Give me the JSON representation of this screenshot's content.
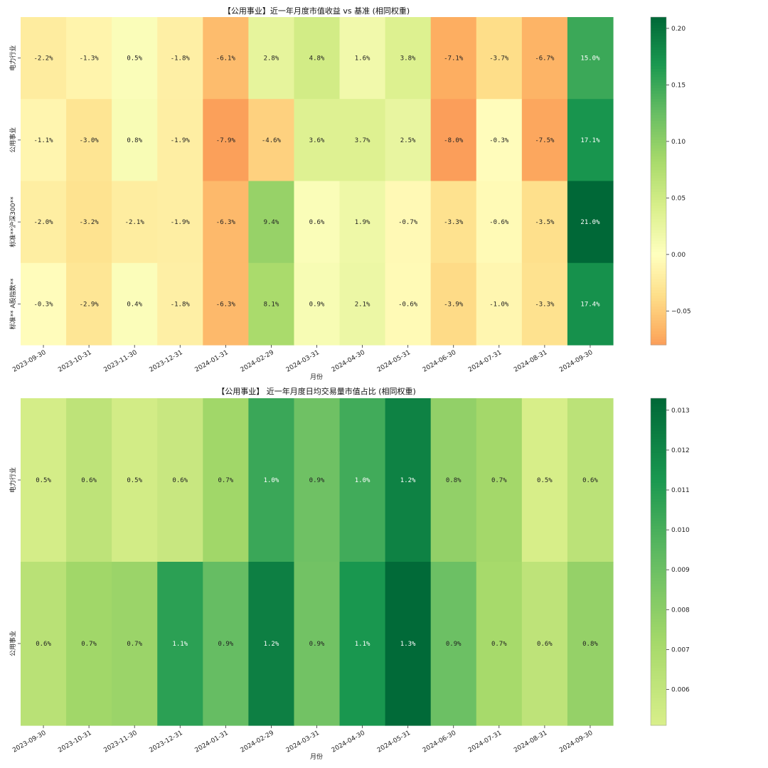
{
  "chart_data": [
    {
      "type": "heatmap",
      "title": "【公用事业】近一年月度市值收益 vs 基准 (相同权重)",
      "xlabel": "月份",
      "ylabel": "",
      "categories": [
        "2023-09-30",
        "2023-10-31",
        "2023-11-30",
        "2023-12-31",
        "2024-01-31",
        "2024-02-29",
        "2024-03-31",
        "2024-04-30",
        "2024-05-31",
        "2024-06-30",
        "2024-07-31",
        "2024-08-31",
        "2024-09-30"
      ],
      "rows": [
        "电力行业",
        "公用事业",
        "标准**沪深300**",
        "标准** A股指数**"
      ],
      "values": [
        [
          -0.022,
          -0.013,
          0.005,
          -0.018,
          -0.061,
          0.028,
          0.048,
          0.016,
          0.038,
          -0.071,
          -0.037,
          -0.067,
          0.15
        ],
        [
          -0.011,
          -0.03,
          0.008,
          -0.019,
          -0.079,
          -0.046,
          0.036,
          0.037,
          0.025,
          -0.08,
          -0.003,
          -0.075,
          0.171
        ],
        [
          -0.02,
          -0.032,
          -0.021,
          -0.019,
          -0.063,
          0.094,
          0.006,
          0.019,
          -0.007,
          -0.033,
          -0.006,
          -0.035,
          0.21
        ],
        [
          -0.003,
          -0.029,
          0.004,
          -0.018,
          -0.063,
          0.081,
          0.009,
          0.021,
          -0.006,
          -0.039,
          -0.01,
          -0.033,
          0.174
        ]
      ],
      "labels": [
        [
          "-2.2%",
          "-1.3%",
          "0.5%",
          "-1.8%",
          "-6.1%",
          "2.8%",
          "4.8%",
          "1.6%",
          "3.8%",
          "-7.1%",
          "-3.7%",
          "-6.7%",
          "15.0%"
        ],
        [
          "-1.1%",
          "-3.0%",
          "0.8%",
          "-1.9%",
          "-7.9%",
          "-4.6%",
          "3.6%",
          "3.7%",
          "2.5%",
          "-8.0%",
          "-0.3%",
          "-7.5%",
          "17.1%"
        ],
        [
          "-2.0%",
          "-3.2%",
          "-2.1%",
          "-1.9%",
          "-6.3%",
          "9.4%",
          "0.6%",
          "1.9%",
          "-0.7%",
          "-3.3%",
          "-0.6%",
          "-3.5%",
          "21.0%"
        ],
        [
          "-0.3%",
          "-2.9%",
          "0.4%",
          "-1.8%",
          "-6.3%",
          "8.1%",
          "0.9%",
          "2.1%",
          "-0.6%",
          "-3.9%",
          "-1.0%",
          "-3.3%",
          "17.4%"
        ]
      ],
      "colormap": "RdYlGn",
      "vmin": -0.08,
      "vmax": 0.21,
      "colorbar_ticks": [
        0.2,
        0.15,
        0.1,
        0.05,
        0.0,
        -0.05
      ],
      "colorbar_tick_labels": [
        "0.20",
        "0.15",
        "0.10",
        "0.05",
        "0.00",
        "−0.05"
      ]
    },
    {
      "type": "heatmap",
      "title": "【公用事业】 近一年月度日均交易量市值占比 (相同权重)",
      "xlabel": "月份",
      "ylabel": "",
      "categories": [
        "2023-09-30",
        "2023-10-31",
        "2023-11-30",
        "2023-12-31",
        "2024-01-31",
        "2024-02-29",
        "2024-03-31",
        "2024-04-30",
        "2024-05-31",
        "2024-06-30",
        "2024-07-31",
        "2024-08-31",
        "2024-09-30"
      ],
      "rows": [
        "电力行业",
        "公用事业"
      ],
      "values": [
        [
          0.0053,
          0.0062,
          0.0054,
          0.0058,
          0.0073,
          0.0104,
          0.0089,
          0.0102,
          0.0122,
          0.0078,
          0.0072,
          0.0052,
          0.0063
        ],
        [
          0.0064,
          0.0073,
          0.0075,
          0.0108,
          0.0092,
          0.0123,
          0.0088,
          0.0113,
          0.0132,
          0.009,
          0.0071,
          0.0062,
          0.0077
        ]
      ],
      "labels": [
        [
          "0.5%",
          "0.6%",
          "0.5%",
          "0.6%",
          "0.7%",
          "1.0%",
          "0.9%",
          "1.0%",
          "1.2%",
          "0.8%",
          "0.7%",
          "0.5%",
          "0.6%"
        ],
        [
          "0.6%",
          "0.7%",
          "0.7%",
          "1.1%",
          "0.9%",
          "1.2%",
          "0.9%",
          "1.1%",
          "1.3%",
          "0.9%",
          "0.7%",
          "0.6%",
          "0.8%"
        ]
      ],
      "colormap": "YlGn-upper",
      "vmin": 0.0051,
      "vmax": 0.0133,
      "colorbar_ticks": [
        0.013,
        0.012,
        0.011,
        0.01,
        0.009,
        0.008,
        0.007,
        0.006
      ],
      "colorbar_tick_labels": [
        "0.013",
        "0.012",
        "0.011",
        "0.010",
        "0.009",
        "0.008",
        "0.007",
        "0.006"
      ]
    }
  ]
}
